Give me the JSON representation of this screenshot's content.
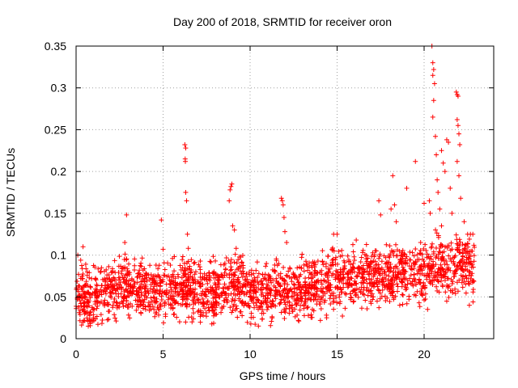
{
  "chart_data": {
    "type": "scatter",
    "title": "Day 200 of 2018, SRMTID for receiver oron",
    "xlabel": "GPS time / hours",
    "ylabel": "SRMTID / TECUs",
    "xlim": [
      0,
      24
    ],
    "ylim": [
      0,
      0.35
    ],
    "x_ticks": [
      0,
      5,
      10,
      15,
      20
    ],
    "x_tick_labels": [
      "0",
      "5",
      "10",
      "15",
      "20"
    ],
    "y_ticks": [
      0,
      0.05,
      0.1,
      0.15,
      0.2,
      0.25,
      0.3,
      0.35
    ],
    "y_tick_labels": [
      "0",
      "0.05",
      "0.1",
      "0.15",
      "0.2",
      "0.25",
      "0.3",
      "0.35"
    ],
    "grid": true,
    "marker": "+",
    "color": "#ff0000",
    "baseline": [
      [
        0,
        0.052
      ],
      [
        1,
        0.047
      ],
      [
        2,
        0.052
      ],
      [
        2.8,
        0.065
      ],
      [
        3.5,
        0.06
      ],
      [
        4.5,
        0.058
      ],
      [
        5.5,
        0.058
      ],
      [
        6.2,
        0.062
      ],
      [
        7,
        0.058
      ],
      [
        8,
        0.055
      ],
      [
        8.8,
        0.07
      ],
      [
        9.5,
        0.062
      ],
      [
        10.5,
        0.052
      ],
      [
        11.5,
        0.058
      ],
      [
        12.5,
        0.058
      ],
      [
        13.5,
        0.062
      ],
      [
        14.5,
        0.068
      ],
      [
        15.5,
        0.072
      ],
      [
        16.5,
        0.072
      ],
      [
        17.2,
        0.078
      ],
      [
        18,
        0.08
      ],
      [
        19,
        0.078
      ],
      [
        20,
        0.075
      ],
      [
        20.5,
        0.09
      ],
      [
        21,
        0.088
      ],
      [
        21.5,
        0.085
      ],
      [
        22,
        0.095
      ],
      [
        22.5,
        0.09
      ],
      [
        22.9,
        0.08
      ]
    ],
    "spread": 0.018,
    "outliers": [
      [
        0.1,
        0.1
      ],
      [
        0.4,
        0.11
      ],
      [
        0.7,
        0.015
      ],
      [
        2.9,
        0.148
      ],
      [
        2.8,
        0.115
      ],
      [
        4.9,
        0.142
      ],
      [
        5.0,
        0.107
      ],
      [
        6.25,
        0.232
      ],
      [
        6.3,
        0.228
      ],
      [
        6.28,
        0.212
      ],
      [
        6.27,
        0.215
      ],
      [
        6.3,
        0.175
      ],
      [
        6.35,
        0.165
      ],
      [
        6.4,
        0.125
      ],
      [
        6.45,
        0.108
      ],
      [
        8.9,
        0.182
      ],
      [
        8.85,
        0.178
      ],
      [
        8.95,
        0.185
      ],
      [
        8.8,
        0.165
      ],
      [
        9.0,
        0.135
      ],
      [
        9.1,
        0.13
      ],
      [
        9.2,
        0.108
      ],
      [
        11.8,
        0.168
      ],
      [
        11.85,
        0.165
      ],
      [
        11.9,
        0.16
      ],
      [
        11.95,
        0.145
      ],
      [
        12.0,
        0.128
      ],
      [
        12.1,
        0.115
      ],
      [
        14.4,
        0.025
      ],
      [
        14.8,
        0.125
      ],
      [
        15.0,
        0.125
      ],
      [
        16.1,
        0.118
      ],
      [
        17.4,
        0.165
      ],
      [
        17.5,
        0.148
      ],
      [
        18.2,
        0.195
      ],
      [
        18.3,
        0.16
      ],
      [
        18.1,
        0.155
      ],
      [
        18.4,
        0.14
      ],
      [
        19.0,
        0.18
      ],
      [
        19.5,
        0.212
      ],
      [
        20.0,
        0.162
      ],
      [
        20.3,
        0.165
      ],
      [
        20.35,
        0.15
      ],
      [
        20.45,
        0.35
      ],
      [
        20.5,
        0.33
      ],
      [
        20.55,
        0.322
      ],
      [
        20.5,
        0.315
      ],
      [
        20.6,
        0.305
      ],
      [
        20.55,
        0.285
      ],
      [
        20.5,
        0.265
      ],
      [
        20.65,
        0.242
      ],
      [
        20.7,
        0.22
      ],
      [
        20.75,
        0.19
      ],
      [
        20.8,
        0.175
      ],
      [
        21.0,
        0.225
      ],
      [
        21.1,
        0.21
      ],
      [
        21.2,
        0.2
      ],
      [
        21.3,
        0.238
      ],
      [
        21.4,
        0.235
      ],
      [
        21.5,
        0.18
      ],
      [
        21.6,
        0.15
      ],
      [
        21.85,
        0.295
      ],
      [
        21.9,
        0.292
      ],
      [
        21.95,
        0.29
      ],
      [
        21.9,
        0.262
      ],
      [
        21.95,
        0.255
      ],
      [
        22.0,
        0.245
      ],
      [
        22.05,
        0.232
      ],
      [
        21.9,
        0.212
      ],
      [
        22.0,
        0.195
      ],
      [
        22.1,
        0.168
      ],
      [
        22.3,
        0.14
      ],
      [
        22.5,
        0.125
      ],
      [
        22.6,
        0.04
      ],
      [
        22.8,
        0.125
      ],
      [
        21.3,
        0.045
      ],
      [
        20.2,
        0.035
      ],
      [
        18.6,
        0.04
      ],
      [
        17.3,
        0.045
      ],
      [
        19.8,
        0.115
      ],
      [
        21.0,
        0.135
      ],
      [
        20.9,
        0.155
      ]
    ]
  }
}
